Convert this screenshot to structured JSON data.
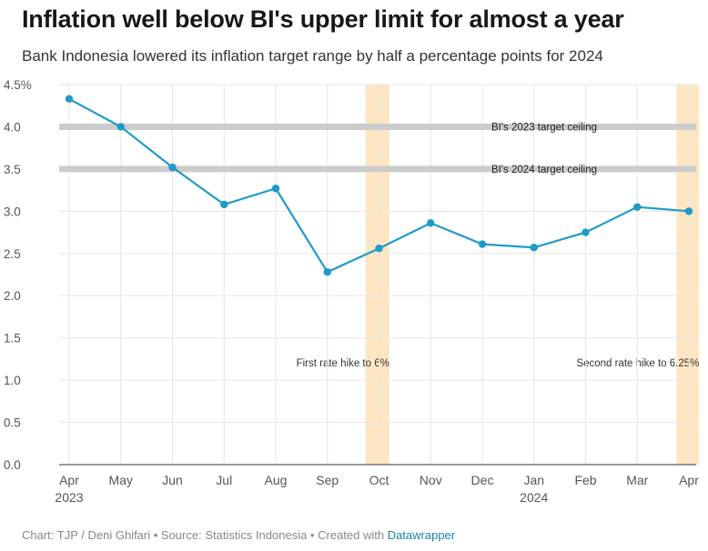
{
  "header": {
    "title": "Inflation well below BI's upper limit for almost a year",
    "subtitle": "Bank Indonesia lowered its inflation target range by half a percentage points for 2024"
  },
  "footer": {
    "text": "Chart: TJP / Deni Ghifari • Source: Statistics Indonesia • Created with ",
    "link": "Datawrapper"
  },
  "chart_data": {
    "type": "line",
    "title": "Inflation well below BI's upper limit for almost a year",
    "subtitle": "Bank Indonesia lowered its inflation target range by half a percentage points for 2024",
    "categories": [
      "Apr",
      "May",
      "Jun",
      "Jul",
      "Aug",
      "Sep",
      "Oct",
      "Nov",
      "Dec",
      "Jan",
      "Feb",
      "Mar",
      "Apr"
    ],
    "year_labels": [
      {
        "index": 0,
        "label": "2023"
      },
      {
        "index": 9,
        "label": "2024"
      }
    ],
    "series": [
      {
        "values": [
          4.33,
          4.0,
          3.52,
          3.08,
          3.27,
          2.28,
          2.56,
          2.86,
          2.61,
          2.57,
          2.75,
          3.05,
          3.0
        ],
        "color": "#1f9ac9"
      }
    ],
    "ylim": [
      0,
      4.5
    ],
    "yticks": [
      {
        "value": 4.5,
        "label": "4.5%"
      },
      {
        "value": 4.0,
        "label": "4.0"
      },
      {
        "value": 3.5,
        "label": "3.5"
      },
      {
        "value": 3.0,
        "label": "3.0"
      },
      {
        "value": 2.5,
        "label": "2.5"
      },
      {
        "value": 2.0,
        "label": "2.0"
      },
      {
        "value": 1.5,
        "label": "1.5"
      },
      {
        "value": 1.0,
        "label": "1.0"
      },
      {
        "value": 0.5,
        "label": "0.5"
      },
      {
        "value": 0.0,
        "label": "0.0"
      }
    ],
    "xlabel": "",
    "ylabel": "",
    "grid": true,
    "reference_lines": [
      {
        "value": 4.0,
        "label": "BI's 2023 target ceiling"
      },
      {
        "value": 3.5,
        "label": "BI's 2024 target ceiling"
      }
    ],
    "highlight_bands": [
      {
        "from_index": 5.74,
        "to_index": 6.2,
        "label": "First rate hike to 6%"
      },
      {
        "from_index": 11.76,
        "to_index": 12.2,
        "label": "Second rate hike to 6.25%"
      }
    ],
    "colors": {
      "line": "#1f9ac9",
      "band": "#fde6c1",
      "reference": "#cccccc",
      "grid": "#e6e6e6"
    }
  }
}
